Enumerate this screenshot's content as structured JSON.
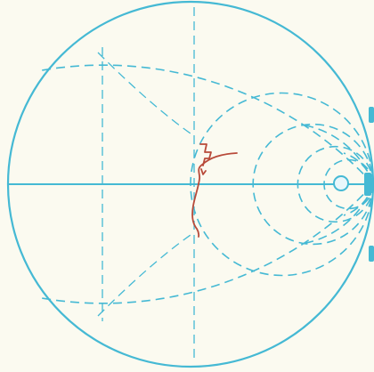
{
  "diagram": {
    "kind": "smith-chart",
    "grid_color": "#45b9d4",
    "locus_color": "#b84a3a",
    "marker_fill": "#e9f7fb",
    "background_color": "#fbfaf0"
  }
}
